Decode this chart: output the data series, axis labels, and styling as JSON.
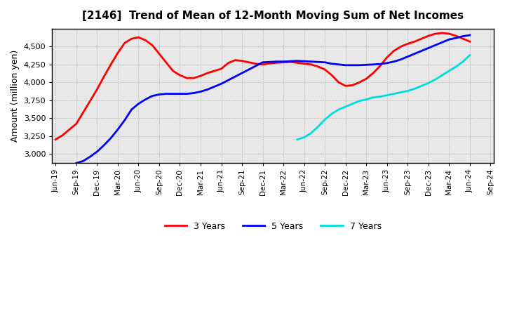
{
  "title": "[2146]  Trend of Mean of 12-Month Moving Sum of Net Incomes",
  "ylabel": "Amount (million yen)",
  "background_color": "#ffffff",
  "plot_bg_color": "#e8e8e8",
  "grid_color": "#aaaaaa",
  "ylim": [
    2875,
    4750
  ],
  "yticks": [
    3000,
    3250,
    3500,
    3750,
    4000,
    4250,
    4500
  ],
  "x_labels": [
    "Jun-19",
    "Sep-19",
    "Dec-19",
    "Mar-20",
    "Jun-20",
    "Sep-20",
    "Dec-20",
    "Mar-21",
    "Jun-21",
    "Sep-21",
    "Dec-21",
    "Mar-22",
    "Jun-22",
    "Sep-22",
    "Dec-22",
    "Mar-23",
    "Jun-23",
    "Sep-23",
    "Dec-23",
    "Mar-24",
    "Jun-24",
    "Sep-24"
  ],
  "series": {
    "3yr": {
      "color": "#ff0000",
      "label": "3 Years",
      "x": [
        0,
        1,
        2,
        3,
        4,
        5,
        6,
        7,
        8,
        9,
        10,
        11,
        12,
        13,
        14,
        15,
        16,
        17,
        18,
        19,
        20,
        21,
        22,
        23,
        24,
        25,
        26,
        27,
        28,
        29,
        30,
        31,
        32,
        33,
        34,
        35,
        36,
        37,
        38,
        39,
        40,
        41,
        42,
        43,
        44,
        45,
        46,
        47,
        48,
        49,
        50,
        51,
        52,
        53,
        54,
        55,
        56,
        57,
        58,
        59,
        60
      ],
      "y": [
        3200,
        3260,
        3340,
        3420,
        3580,
        3740,
        3900,
        4080,
        4250,
        4410,
        4550,
        4610,
        4630,
        4590,
        4520,
        4400,
        4280,
        4160,
        4100,
        4060,
        4060,
        4090,
        4130,
        4160,
        4190,
        4270,
        4310,
        4300,
        4280,
        4260,
        4250,
        4265,
        4275,
        4280,
        4285,
        4275,
        4260,
        4250,
        4220,
        4180,
        4100,
        4000,
        3950,
        3960,
        4000,
        4050,
        4130,
        4230,
        4350,
        4440,
        4500,
        4540,
        4570,
        4610,
        4650,
        4680,
        4690,
        4680,
        4650,
        4610,
        4570
      ]
    },
    "5yr": {
      "color": "#0000ff",
      "label": "5 Years",
      "x": [
        3,
        4,
        5,
        6,
        7,
        8,
        9,
        10,
        11,
        12,
        13,
        14,
        15,
        16,
        17,
        18,
        19,
        20,
        21,
        22,
        23,
        24,
        25,
        26,
        27,
        28,
        29,
        30,
        31,
        32,
        33,
        34,
        35,
        36,
        37,
        38,
        39,
        40,
        41,
        42,
        43,
        44,
        45,
        46,
        47,
        48,
        49,
        50,
        51,
        52,
        53,
        54,
        55,
        56,
        57,
        58,
        59,
        60
      ],
      "y": [
        2870,
        2900,
        2960,
        3030,
        3120,
        3220,
        3340,
        3470,
        3620,
        3700,
        3760,
        3810,
        3830,
        3840,
        3840,
        3840,
        3840,
        3850,
        3870,
        3900,
        3940,
        3980,
        4030,
        4080,
        4130,
        4180,
        4230,
        4280,
        4285,
        4290,
        4290,
        4295,
        4300,
        4295,
        4290,
        4285,
        4280,
        4260,
        4250,
        4240,
        4240,
        4240,
        4245,
        4250,
        4255,
        4270,
        4290,
        4320,
        4360,
        4400,
        4440,
        4480,
        4520,
        4560,
        4600,
        4620,
        4645,
        4660
      ]
    },
    "7yr": {
      "color": "#00dddd",
      "label": "7 Years",
      "x": [
        35,
        36,
        37,
        38,
        39,
        40,
        41,
        42,
        43,
        44,
        45,
        46,
        47,
        48,
        49,
        50,
        51,
        52,
        53,
        54,
        55,
        56,
        57,
        58,
        59,
        60
      ],
      "y": [
        3200,
        3230,
        3290,
        3380,
        3480,
        3560,
        3620,
        3660,
        3700,
        3740,
        3760,
        3790,
        3800,
        3820,
        3840,
        3860,
        3880,
        3910,
        3950,
        3990,
        4040,
        4100,
        4160,
        4220,
        4290,
        4380
      ]
    },
    "10yr": {
      "color": "#008000",
      "x": [],
      "y": []
    }
  }
}
